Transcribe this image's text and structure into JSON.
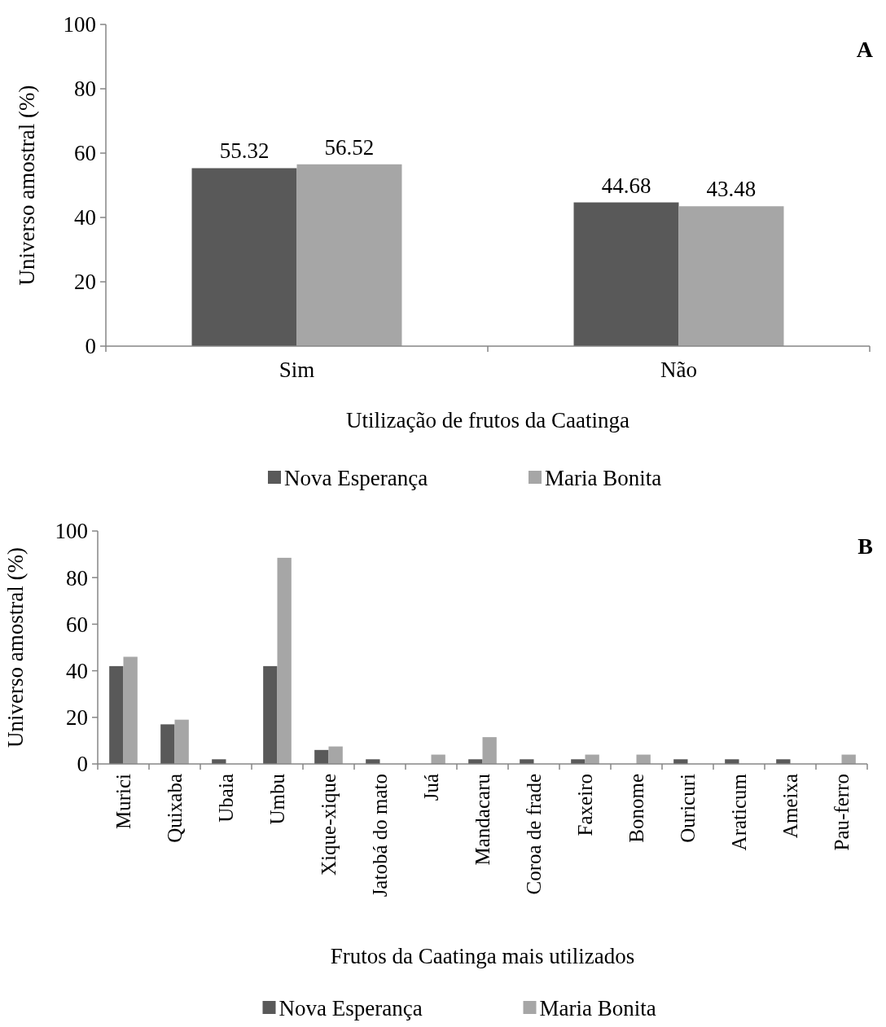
{
  "chart_data": [
    {
      "type": "bar",
      "xlabel": "Utilização de frutos da Caatinga",
      "ylabel": "Universo amostral (%)",
      "annotations": [
        "A"
      ],
      "categories": [
        "Sim",
        "Não"
      ],
      "series": [
        {
          "name": "Nova Esperança",
          "color": "#595959",
          "values": [
            55.32,
            44.68
          ]
        },
        {
          "name": "Maria Bonita",
          "color": "#a6a6a6",
          "values": [
            56.52,
            43.48
          ]
        }
      ],
      "ylim": [
        0,
        100
      ],
      "yticks": [
        0,
        20,
        40,
        60,
        80,
        100
      ],
      "data_labels": true,
      "legend": "bottom",
      "grid": false
    },
    {
      "type": "bar",
      "xlabel": "Frutos da Caatinga mais utilizados",
      "ylabel": "Universo amostral (%)",
      "annotations": [
        "B"
      ],
      "categories": [
        "Murici",
        "Quixaba",
        "Ubaia",
        "Umbu",
        "Xique-xique",
        "Jatobá do mato",
        "Juá",
        "Mandacaru",
        "Coroa de frade",
        "Faxeiro",
        "Bonome",
        "Ouricuri",
        "Araticum",
        "Ameixa",
        "Pau-ferro"
      ],
      "series": [
        {
          "name": "Nova Esperança",
          "color": "#595959",
          "values": [
            42,
            17,
            2,
            42,
            6,
            2,
            0,
            2,
            2,
            2,
            0,
            2,
            2,
            2,
            0
          ]
        },
        {
          "name": "Maria Bonita",
          "color": "#a6a6a6",
          "values": [
            46,
            19,
            0,
            88.5,
            7.5,
            0,
            4,
            11.5,
            0,
            4,
            4,
            0,
            0,
            0,
            4
          ]
        }
      ],
      "ylim": [
        0,
        100
      ],
      "yticks": [
        0,
        20,
        40,
        60,
        80,
        100
      ],
      "legend": "bottom",
      "grid": false
    }
  ]
}
